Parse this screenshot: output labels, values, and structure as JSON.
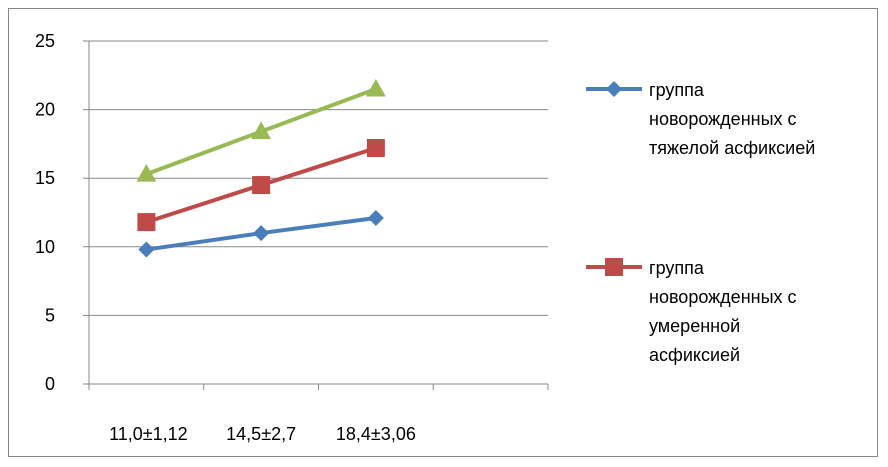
{
  "chart_data": {
    "type": "line",
    "categories": [
      "11,0±1,12",
      "14,5±2,7",
      "18,4±3,06"
    ],
    "ylim": [
      0,
      25
    ],
    "yticks": [
      0,
      5,
      10,
      15,
      20,
      25
    ],
    "grid": true,
    "legend_position": "right",
    "title": "",
    "xlabel": "",
    "ylabel": "",
    "series": [
      {
        "name": "группа новорожденных с тяжелой асфиксией",
        "legend_lines": [
          "группа",
          "новорожденных с",
          "тяжелой асфиксией"
        ],
        "values": [
          9.8,
          11.0,
          12.1
        ],
        "color": "#4a7ebb",
        "marker": "diamond"
      },
      {
        "name": "группа новорожденных с умеренной асфиксией",
        "legend_lines": [
          "группа",
          "новорожденных с",
          "умеренной",
          "асфиксией"
        ],
        "values": [
          11.8,
          14.5,
          17.2
        ],
        "color": "#be4b48",
        "marker": "square"
      },
      {
        "values": [
          15.3,
          18.4,
          21.5
        ],
        "color": "#98b954",
        "marker": "triangle"
      }
    ]
  }
}
